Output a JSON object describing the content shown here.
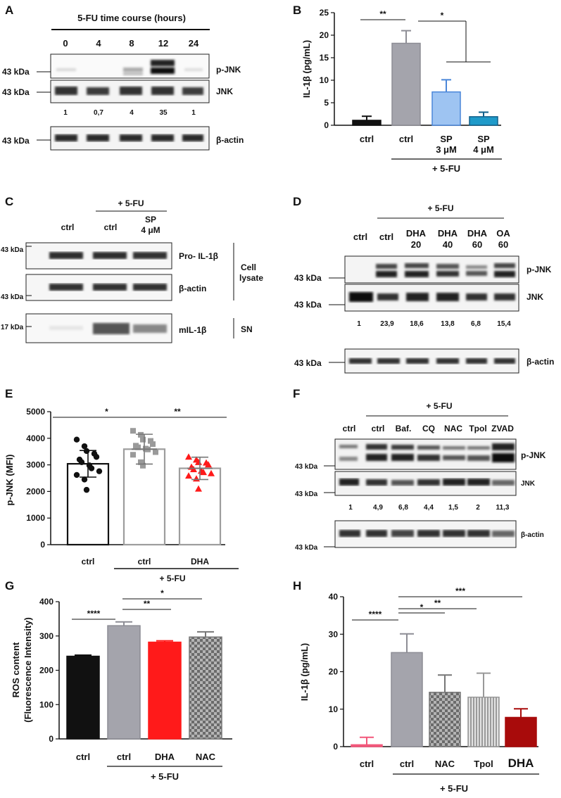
{
  "panel_letters": [
    "A",
    "B",
    "C",
    "D",
    "E",
    "F",
    "G",
    "H"
  ],
  "colors": {
    "black": "#111111",
    "grey": "#a4a4ac",
    "lightblue": "#9ec4f2",
    "teal": "#1f9ac9",
    "red": "#ff1a1a",
    "darkred": "#a80b0b",
    "pink": "#f2577a",
    "lightgrey": "#cfcfcf"
  },
  "A": {
    "title": "5-FU time course (hours)",
    "lanes": [
      "0",
      "4",
      "8",
      "12",
      "24"
    ],
    "kda": [
      "43 kDa",
      "43 kDa",
      "43 kDa"
    ],
    "blots": [
      "p-JNK",
      "JNK",
      "β-actin"
    ],
    "quant": [
      "1",
      "0,7",
      "4",
      "35",
      "1"
    ]
  },
  "C": {
    "fu": "+ 5-FU",
    "lanes": [
      "ctrl",
      "ctrl",
      "SP",
      "4 μM"
    ],
    "kda": [
      "43 kDa",
      "43 kDa",
      "17 kDa"
    ],
    "blots": [
      "Pro- IL-1β",
      "β-actin",
      "mIL-1β"
    ],
    "lysate": [
      "Cell",
      "lysate"
    ],
    "sn": "SN"
  },
  "D": {
    "fu": "+ 5-FU",
    "lanes_top": [
      "ctrl",
      "ctrl",
      "DHA",
      "DHA",
      "DHA",
      "OA"
    ],
    "lanes_bottom": [
      "20",
      "40",
      "60",
      "60"
    ],
    "kda": [
      "43 kDa",
      "43 kDa",
      "43 kDa"
    ],
    "blots": [
      "p-JNK",
      "JNK",
      "β-actin"
    ],
    "quant": [
      "1",
      "23,9",
      "18,6",
      "13,8",
      "6,8",
      "15,4"
    ]
  },
  "F": {
    "fu": "+ 5-FU",
    "lanes": [
      "ctrl",
      "ctrl",
      "Baf.",
      "CQ",
      "NAC",
      "Tpol",
      "ZVAD"
    ],
    "kda": [
      "43 kDa",
      "43 kDa",
      "43 kDa"
    ],
    "blots": [
      "p-JNK",
      "JNK",
      "β-actin"
    ],
    "quant": [
      "1",
      "4,9",
      "6,8",
      "4,4",
      "1,5",
      "2",
      "11,3"
    ]
  },
  "chart_data": [
    {
      "panel": "B",
      "type": "bar",
      "ylabel": "IL-1β (pg/mL)",
      "ylim": [
        0,
        25
      ],
      "yticks": [
        0,
        5,
        10,
        15,
        20,
        25
      ],
      "categories": [
        "ctrl",
        "ctrl",
        "SP 3 μM",
        "SP 4 μM"
      ],
      "values": [
        1.1,
        18.2,
        7.4,
        1.9
      ],
      "errors": [
        0.9,
        2.8,
        2.7,
        1.0
      ],
      "group_label": "+ 5-FU",
      "significance": [
        "**",
        "*"
      ]
    },
    {
      "panel": "E",
      "type": "scatter",
      "ylabel": "p-JNK (MFI)",
      "ylim": [
        0,
        5000
      ],
      "yticks": [
        0,
        1000,
        2000,
        3000,
        4000,
        5000
      ],
      "categories": [
        "ctrl",
        "ctrl",
        "DHA"
      ],
      "means": [
        3040,
        3590,
        2870
      ],
      "sd": [
        500,
        560,
        420
      ],
      "group_label": "+ 5-FU",
      "significance": [
        "*",
        "**"
      ],
      "points": [
        [
          3950,
          3700,
          3520,
          3420,
          3300,
          3200,
          3100,
          2980,
          2870,
          2760,
          2620,
          2450,
          2060
        ],
        [
          4280,
          4130,
          3950,
          3900,
          3780,
          3720,
          3660,
          3610,
          3580,
          3480,
          3380,
          3100,
          2970
        ],
        [
          3300,
          3190,
          3100,
          3080,
          3010,
          2920,
          2830,
          2770,
          2720,
          2680,
          2590,
          2480,
          2100
        ]
      ]
    },
    {
      "panel": "G",
      "type": "bar",
      "ylabel": "ROS content",
      "ylabel2": "(Fluorescence Intensity)",
      "ylim": [
        0,
        400
      ],
      "yticks": [
        0,
        100,
        200,
        300,
        400
      ],
      "categories": [
        "ctrl",
        "ctrl",
        "DHA",
        "NAC"
      ],
      "values": [
        241,
        330,
        282,
        297
      ],
      "errors": [
        3,
        11,
        4,
        15
      ],
      "group_label": "+ 5-FU",
      "significance": [
        "****",
        "**",
        "*"
      ]
    },
    {
      "panel": "H",
      "type": "bar",
      "ylabel": "IL-1β (pg/mL)",
      "ylim": [
        0,
        40
      ],
      "yticks": [
        0,
        10,
        20,
        30,
        40
      ],
      "categories": [
        "ctrl",
        "ctrl",
        "NAC",
        "Tpol",
        "DHA"
      ],
      "values": [
        0.5,
        25.1,
        14.5,
        13.2,
        7.8
      ],
      "errors": [
        2.0,
        5.0,
        4.6,
        6.4,
        2.3
      ],
      "group_label": "+ 5-FU",
      "significance": [
        "****",
        "*",
        "**",
        "***"
      ]
    }
  ]
}
